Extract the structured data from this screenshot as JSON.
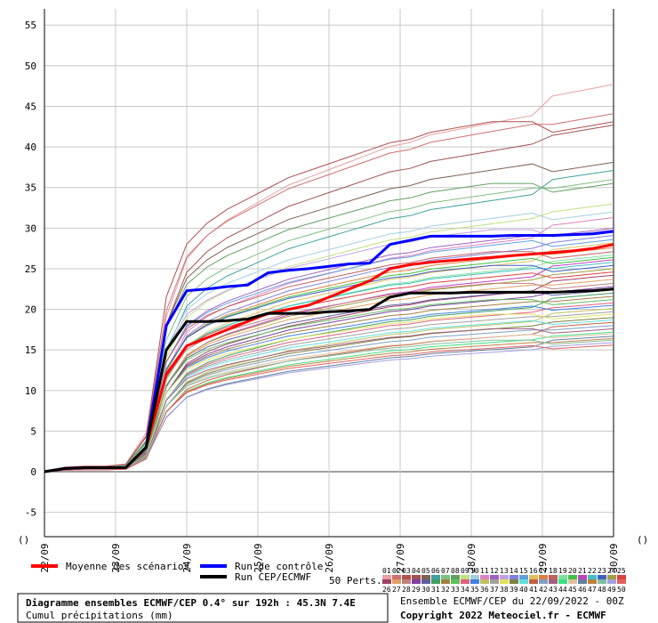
{
  "chart_data": {
    "type": "line",
    "x": [
      "22/09",
      "22/09 12h",
      "23/09",
      "23/09 12h",
      "24/09",
      "24/09 06h",
      "24/09 12h",
      "24/09 18h",
      "25/09",
      "25/09 06h",
      "25/09 12h",
      "25/09 18h",
      "26/09",
      "26/09 06h",
      "26/09 12h",
      "26/09 18h",
      "27/09",
      "27/09 06h",
      "27/09 12h",
      "27/09 18h",
      "28/09",
      "28/09 06h",
      "28/09 12h",
      "28/09 18h",
      "29/09",
      "29/09 06h",
      "29/09 12h",
      "29/09 18h",
      "30/09"
    ],
    "xticks": [
      "22/09",
      "23/09",
      "24/09",
      "25/09",
      "26/09",
      "27/09",
      "28/09",
      "29/09",
      "30/09"
    ],
    "yticks": [
      -5,
      0,
      5,
      10,
      15,
      20,
      25,
      30,
      35,
      40,
      45,
      50,
      55
    ],
    "ylim": [
      -8,
      57
    ],
    "grid": true,
    "axis_unit_left": "()",
    "axis_unit_right": "()",
    "series": [
      {
        "name": "Moyenne des scénarios",
        "color": "#ff0000",
        "width": 3,
        "values": [
          0,
          0.4,
          0.5,
          0.5,
          0.5,
          3,
          12,
          15.5,
          16.5,
          17.5,
          18.5,
          19.5,
          20,
          20.5,
          21.5,
          22.5,
          23.5,
          25,
          25.5,
          25.8,
          26,
          26.2,
          26.4,
          26.6,
          26.8,
          27,
          27.2,
          27.5,
          28
        ]
      },
      {
        "name": "Run de contrôle",
        "color": "#0000ff",
        "width": 3,
        "values": [
          0,
          0.4,
          0.5,
          0.5,
          0.5,
          3,
          18,
          22.3,
          22.5,
          22.8,
          23,
          24.5,
          24.8,
          25,
          25.3,
          25.6,
          25.7,
          28,
          28.5,
          29,
          29,
          29,
          29,
          29.1,
          29.1,
          29.1,
          29.2,
          29.3,
          29.6
        ]
      },
      {
        "name": "Run CEP/ECMWF",
        "color": "#000000",
        "width": 3,
        "values": [
          0,
          0.4,
          0.5,
          0.5,
          0.5,
          3,
          15,
          18.5,
          18.5,
          18.6,
          18.8,
          19.5,
          19.5,
          19.5,
          19.7,
          19.8,
          20,
          21.5,
          22,
          22,
          22,
          22.1,
          22.1,
          22.1,
          22.1,
          22.1,
          22.2,
          22.3,
          22.5
        ]
      }
    ],
    "perturbations": {
      "label": "50 Perts.",
      "count": 50,
      "codes": [
        "01",
        "02",
        "03",
        "04",
        "05",
        "06",
        "07",
        "08",
        "09",
        "10",
        "11",
        "12",
        "13",
        "14",
        "15",
        "16",
        "17",
        "18",
        "19",
        "20",
        "21",
        "22",
        "23",
        "24",
        "25",
        "26",
        "27",
        "28",
        "29",
        "30",
        "31",
        "32",
        "33",
        "34",
        "35",
        "36",
        "37",
        "38",
        "39",
        "40",
        "41",
        "42",
        "43",
        "44",
        "45",
        "46",
        "47",
        "48",
        "49",
        "50"
      ],
      "colors": [
        "#e6a0a0",
        "#d07070",
        "#b05050",
        "#a05050",
        "#806050",
        "#40a0a0",
        "#80c080",
        "#60a060",
        "#c0e080",
        "#a0d0e0",
        "#e080c0",
        "#a060c0",
        "#c0a0e0",
        "#8080e0",
        "#60a0e0",
        "#e0c060",
        "#e08040",
        "#c06060",
        "#80e0a0",
        "#40c040",
        "#c040c0",
        "#40c0c0",
        "#4060c0",
        "#a0a040",
        "#e04040",
        "#a04060",
        "#e0a060",
        "#c08080",
        "#8040a0",
        "#6060a0",
        "#40a060",
        "#a08040",
        "#60c060",
        "#e06080",
        "#4080e0",
        "#c0c060",
        "#a0a0a0",
        "#e0e060",
        "#808040",
        "#60e0e0",
        "#c06040",
        "#80a0c0",
        "#a06080",
        "#40e080",
        "#e0c0a0",
        "#6080a0",
        "#c08040",
        "#80c0a0",
        "#a0a0e0",
        "#e06060"
      ],
      "final_values": [
        47.7,
        44.1,
        43.1,
        42.7,
        38.1,
        37.1,
        36.0,
        35.5,
        33.0,
        32.0,
        31.3,
        30.0,
        29.8,
        29.1,
        28.6,
        28.2,
        27.6,
        27.1,
        26.7,
        26.4,
        26.1,
        25.8,
        25.4,
        25.0,
        24.6,
        24.2,
        23.7,
        23.2,
        22.8,
        22.4,
        22.0,
        21.6,
        21.2,
        20.8,
        20.5,
        20.1,
        19.7,
        19.4,
        19.0,
        18.7,
        18.4,
        18.0,
        17.6,
        17.2,
        17.0,
        16.7,
        16.4,
        16.2,
        15.9,
        15.6
      ]
    }
  },
  "legend": {
    "mean": "Moyenne des scénarios",
    "control": "Run de contrôle",
    "ecmwf": "Run CEP/ECMWF"
  },
  "footer": {
    "title": "Diagramme ensembles ECMWF/CEP 0.4° sur 192h : 45.3N 7.4E",
    "subtitle": "Cumul précipitations (mm)",
    "run_info": "Ensemble ECMWF/CEP du 22/09/2022 - 00Z",
    "copyright": "Copyright 2022 Meteociel.fr - ECMWF"
  }
}
